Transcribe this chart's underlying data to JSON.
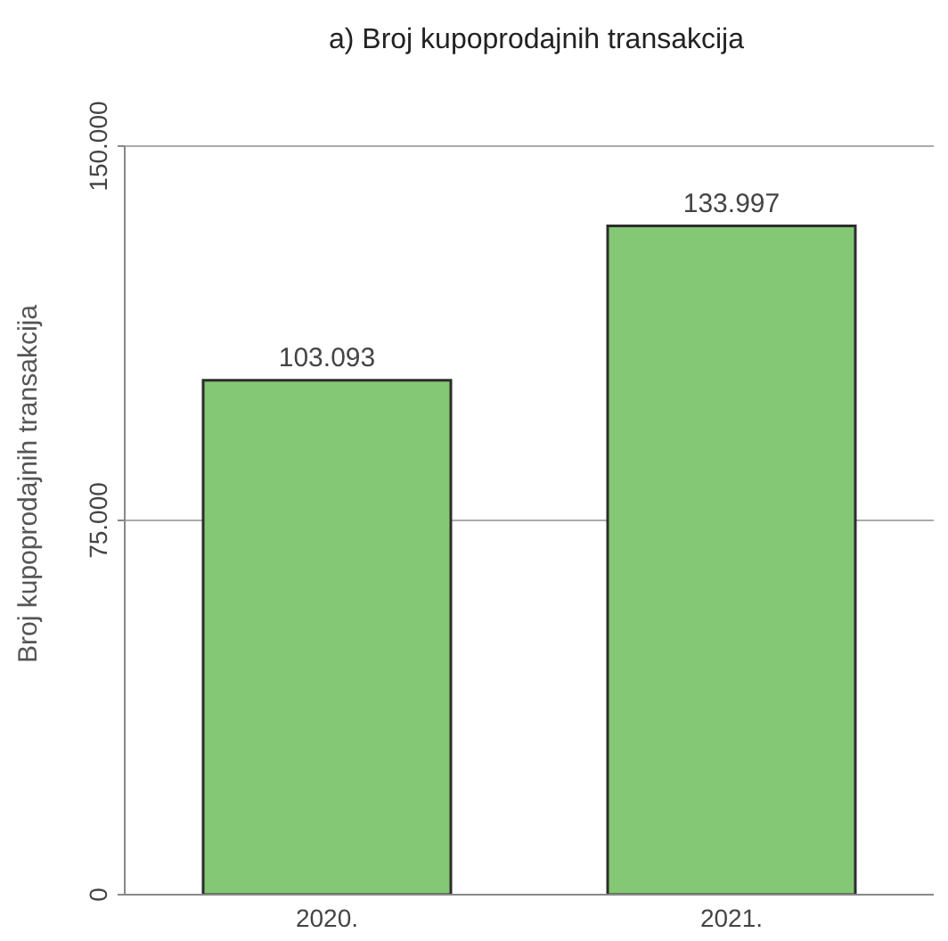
{
  "chart_data": {
    "type": "bar",
    "title": "a) Broj kupoprodajnih transakcija",
    "ylabel": "Broj kupoprodajnih transakcija",
    "categories": [
      "2020.",
      "2021."
    ],
    "values": [
      103093,
      133997
    ],
    "value_labels": [
      "103.093",
      "133.997"
    ],
    "color": "#84c774",
    "ylim": [
      0,
      150000
    ],
    "yticks": [
      {
        "value": 0,
        "label": "0"
      },
      {
        "value": 75000,
        "label": "75.000"
      },
      {
        "value": 150000,
        "label": "150.000"
      }
    ],
    "grid": "y",
    "legend": false
  }
}
